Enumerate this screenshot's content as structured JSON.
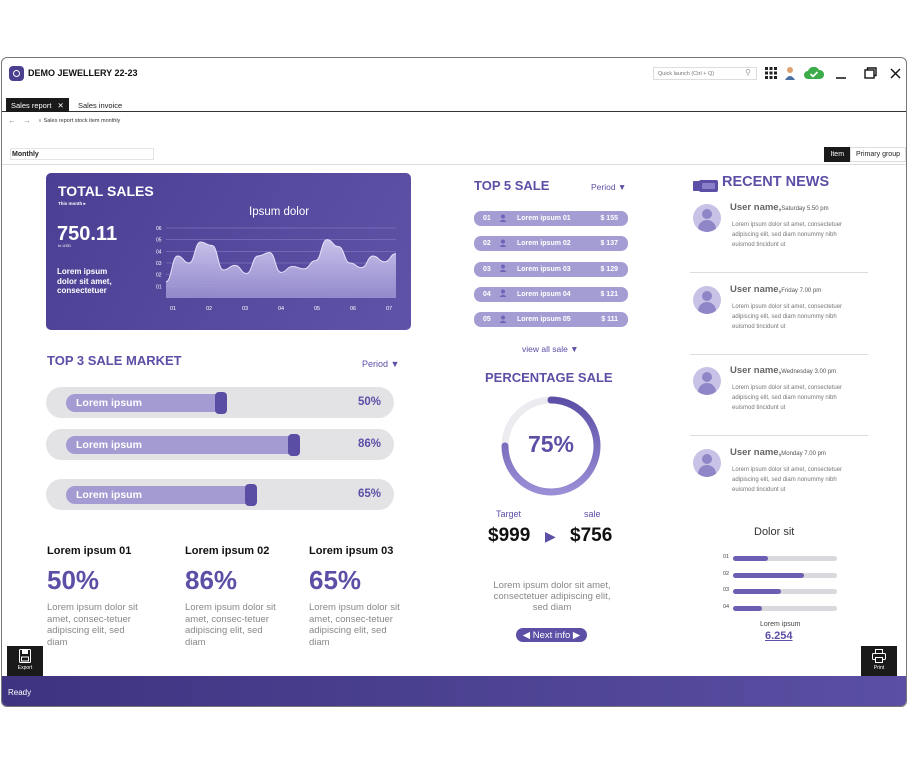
{
  "window": {
    "title": "DEMO JEWELLERY 22-23",
    "quick_launch_placeholder": "Quick launch (Ctrl + Q)"
  },
  "tabs": [
    {
      "label": "Sales report",
      "active": true
    },
    {
      "label": "Sales invoice",
      "active": false
    }
  ],
  "breadcrumb": "Sales report stock item monthly",
  "filter": {
    "period": "Monthly"
  },
  "group_buttons": [
    {
      "label": "Item",
      "active": true
    },
    {
      "label": "Primary group",
      "active": false
    }
  ],
  "total_sales": {
    "title": "TOTAL SALES",
    "subtitle": "This month",
    "value": "750.11",
    "unit": "In USD",
    "description": "Lorem ipsum dolor sit amet, consectetuer",
    "chart_title": "Ipsum dolor",
    "chart_data": {
      "type": "area",
      "x_ticks": [
        "01",
        "02",
        "03",
        "04",
        "05",
        "06",
        "07"
      ],
      "y_ticks": [
        "01",
        "02",
        "03",
        "04",
        "05",
        "06"
      ],
      "ylim": [
        0,
        6
      ],
      "points": [
        1.4,
        3.6,
        3.0,
        4.8,
        4.5,
        2.4,
        2.8,
        2.1,
        3.6,
        3.9,
        2.2,
        2.7,
        2.5,
        3.2,
        5.0,
        4.4,
        3.0,
        2.6,
        3.6,
        3.1,
        3.8
      ]
    }
  },
  "top3": {
    "title": "TOP 3 SALE MARKET",
    "period": "Period ▼",
    "bars": [
      {
        "label": "Lorem ipsum",
        "pct_text": "50%",
        "value": 0.5
      },
      {
        "label": "Lorem ipsum",
        "pct_text": "86%",
        "value": 0.86
      },
      {
        "label": "Lorem ipsum",
        "pct_text": "65%",
        "value": 0.65
      }
    ]
  },
  "stats": [
    {
      "heading": "Lorem ipsum 01",
      "value": "50%",
      "text": "Lorem ipsum dolor sit amet, consec-tetuer adipiscing elit, sed diam"
    },
    {
      "heading": "Lorem ipsum 02",
      "value": "86%",
      "text": "Lorem ipsum dolor sit amet, consec-tetuer adipiscing elit, sed diam"
    },
    {
      "heading": "Lorem ipsum 03",
      "value": "65%",
      "text": "Lorem ipsum dolor sit amet, consec-tetuer adipiscing elit, sed diam"
    }
  ],
  "top5": {
    "title": "TOP 5 SALE",
    "period": "Period ▼",
    "rows": [
      {
        "rank": "01",
        "name": "Lorem ipsum 01",
        "amount": "$ 155"
      },
      {
        "rank": "02",
        "name": "Lorem ipsum 02",
        "amount": "$ 137"
      },
      {
        "rank": "03",
        "name": "Lorem ipsum 03",
        "amount": "$ 129"
      },
      {
        "rank": "04",
        "name": "Lorem ipsum 04",
        "amount": "$ 121"
      },
      {
        "rank": "05",
        "name": "Lorem ipsum 05",
        "amount": "$ 111"
      }
    ],
    "view_all": "view all sale ▼"
  },
  "percentage": {
    "title": "PERCENTAGE SALE",
    "value_text": "75%",
    "value": 0.75,
    "target_label": "Target",
    "sale_label": "sale",
    "target": "$999",
    "sale": "$756",
    "text": "Lorem ipsum dolor sit amet, consectetuer adipiscing elit, sed diam",
    "next": "Next info"
  },
  "news": {
    "title": "RECENT NEWS",
    "items": [
      {
        "user": "User name,",
        "time": "Saturday 5.50 pm",
        "text": "Lorem ipsum dolor sit amet, consectetuer adipiscing elit, sed diam nonummy nibh euismod tincidunt ut"
      },
      {
        "user": "User name,",
        "time": "Friday 7.00 pm",
        "text": "Lorem ipsum dolor sit amet, consectetuer adipiscing elit, sed diam nonummy nibh euismod tincidunt ut"
      },
      {
        "user": "User name,",
        "time": "Wednesday 3.00 pm",
        "text": "Lorem ipsum dolor sit amet, consectetuer adipiscing elit, sed diam nonummy nibh euismod tincidunt ut"
      },
      {
        "user": "User name,",
        "time": "Monday 7.00 pm",
        "text": "Lorem ipsum dolor sit amet, consectetuer adipiscing elit, sed diam nonummy nibh euismod tincidunt ut"
      }
    ]
  },
  "dolor": {
    "title": "Dolor sit",
    "bars": [
      {
        "label": "01",
        "value": 0.34
      },
      {
        "label": "02",
        "value": 0.68
      },
      {
        "label": "03",
        "value": 0.46
      },
      {
        "label": "04",
        "value": 0.28
      }
    ],
    "footer_label": "Lorem ipsum",
    "footer_value": "6.254"
  },
  "side_buttons": {
    "export": "Export",
    "print": "Print"
  },
  "status": "Ready",
  "colors": {
    "accent": "#5b4fa6",
    "light": "#a49dd3",
    "dark": "#1a1a1a"
  }
}
